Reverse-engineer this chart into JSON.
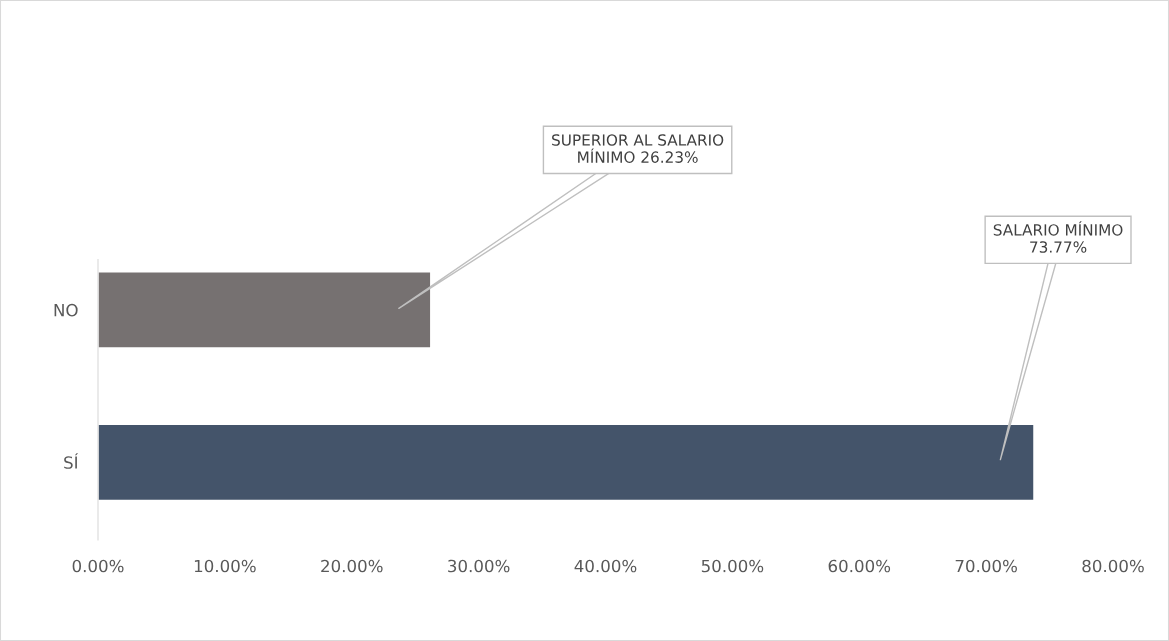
{
  "chart_data": {
    "type": "bar",
    "orientation": "horizontal",
    "categories": [
      "NO",
      "SÍ"
    ],
    "values": [
      26.23,
      73.77
    ],
    "colors": [
      "#767171",
      "#44546a"
    ],
    "annotations": [
      "SUPERIOR AL SALARIO\nMÍNIMO 26.23%",
      "SALARIO MÍNIMO\n73.77%"
    ],
    "xlim": [
      0,
      80
    ],
    "xticks": [
      {
        "value": 0,
        "label": "0.00%"
      },
      {
        "value": 10,
        "label": "10.00%"
      },
      {
        "value": 20,
        "label": "20.00%"
      },
      {
        "value": 30,
        "label": "30.00%"
      },
      {
        "value": 40,
        "label": "40.00%"
      },
      {
        "value": 50,
        "label": "50.00%"
      },
      {
        "value": 60,
        "label": "60.00%"
      },
      {
        "value": 70,
        "label": "70.00%"
      },
      {
        "value": 80,
        "label": "80.00%"
      }
    ],
    "grid": false
  }
}
